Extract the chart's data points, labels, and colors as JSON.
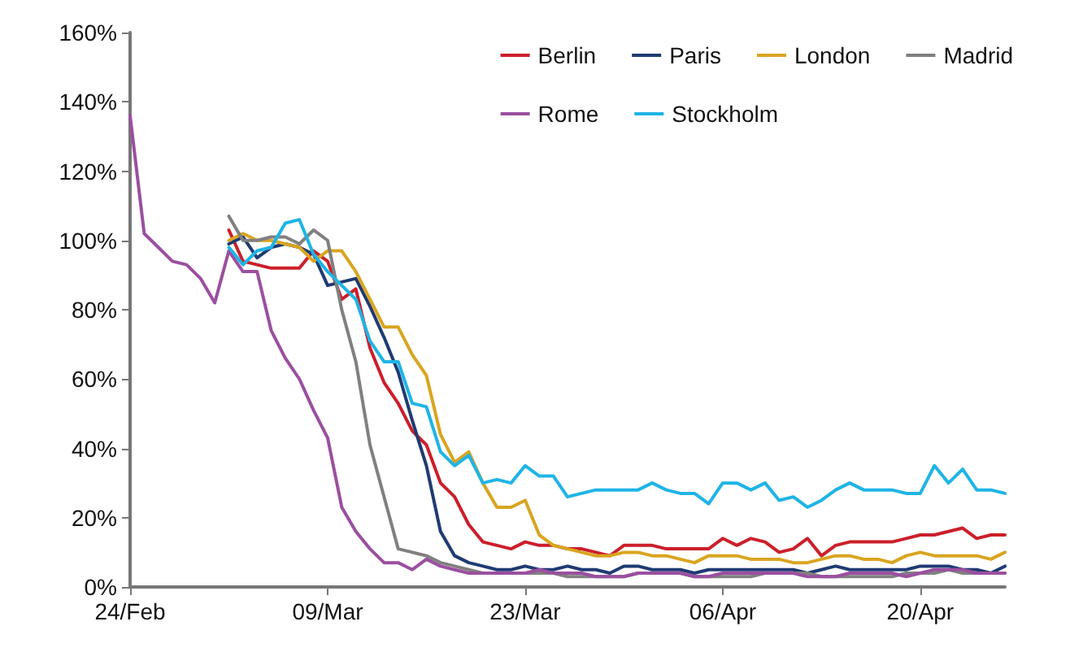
{
  "chart_data": {
    "type": "line",
    "marker": "none",
    "line_style": "solid",
    "grid": false,
    "legend": "top right",
    "x": [
      "--02-24",
      "--02-25",
      "--02-26",
      "--02-27",
      "--02-28",
      "--02-29",
      "--03-01",
      "--03-02",
      "--03-03",
      "--03-04",
      "--03-05",
      "--03-06",
      "--03-07",
      "--03-08",
      "--03-09",
      "--03-10",
      "--03-11",
      "--03-12",
      "--03-13",
      "--03-14",
      "--03-15",
      "--03-16",
      "--03-17",
      "--03-18",
      "--03-19",
      "--03-20",
      "--03-21",
      "--03-22",
      "--03-23",
      "--03-24",
      "--03-25",
      "--03-26",
      "--03-27",
      "--03-28",
      "--03-29",
      "--03-30",
      "--03-31",
      "--04-01",
      "--04-02",
      "--04-03",
      "--04-04",
      "--04-05",
      "--04-06",
      "--04-07",
      "--04-08",
      "--04-09",
      "--04-10",
      "--04-11",
      "--04-12",
      "--04-13",
      "--04-14",
      "--04-15",
      "--04-16",
      "--04-17",
      "--04-18",
      "--04-19",
      "--04-20",
      "--04-21",
      "--04-22",
      "--04-23",
      "--04-24",
      "--04-25",
      "--04-26"
    ],
    "xlim": [
      "--02-24",
      "--04-26"
    ],
    "xticks": [
      {
        "value": "--02-24",
        "label": "24/Feb"
      },
      {
        "value": "--03-09",
        "label": "09/Mar"
      },
      {
        "value": "--03-23",
        "label": "23/Mar"
      },
      {
        "value": "--04-06",
        "label": "06/Apr"
      },
      {
        "value": "--04-20",
        "label": "20/Apr"
      }
    ],
    "ylim": [
      0,
      160
    ],
    "yticks": [
      {
        "value": 0,
        "label": "0%"
      },
      {
        "value": 20,
        "label": "20%"
      },
      {
        "value": 40,
        "label": "40%"
      },
      {
        "value": 60,
        "label": "60%"
      },
      {
        "value": 80,
        "label": "80%"
      },
      {
        "value": 100,
        "label": "100%"
      },
      {
        "value": 120,
        "label": "120%"
      },
      {
        "value": 140,
        "label": "140%"
      },
      {
        "value": 160,
        "label": "160%"
      }
    ],
    "series": [
      {
        "name": "Berlin",
        "color": "#cc1f2b",
        "values": [
          null,
          null,
          null,
          null,
          null,
          null,
          null,
          103,
          94,
          93,
          92,
          92,
          92,
          97,
          94,
          83,
          86,
          69,
          59,
          53,
          45,
          41,
          30,
          26,
          18,
          13,
          12,
          11,
          13,
          12,
          12,
          11,
          11,
          10,
          9,
          12,
          12,
          12,
          11,
          11,
          11,
          11,
          14,
          12,
          14,
          13,
          10,
          11,
          14,
          9,
          12,
          13,
          13,
          13,
          13,
          14,
          15,
          15,
          16,
          17,
          14,
          15,
          15
        ]
      },
      {
        "name": "Paris",
        "color": "#1f3b73",
        "values": [
          null,
          null,
          null,
          null,
          null,
          null,
          null,
          99,
          101,
          95,
          98,
          99,
          98,
          96,
          87,
          88,
          89,
          81,
          72,
          62,
          48,
          35,
          16,
          9,
          7,
          6,
          5,
          5,
          6,
          5,
          5,
          6,
          5,
          5,
          4,
          6,
          6,
          5,
          5,
          5,
          4,
          5,
          5,
          5,
          5,
          5,
          5,
          5,
          4,
          5,
          6,
          5,
          5,
          5,
          5,
          5,
          6,
          6,
          6,
          5,
          5,
          4,
          6
        ]
      },
      {
        "name": "London",
        "color": "#d9a520",
        "values": [
          null,
          null,
          null,
          null,
          null,
          null,
          null,
          100,
          102,
          100,
          100,
          99,
          98,
          94,
          97,
          97,
          91,
          83,
          75,
          75,
          67,
          61,
          44,
          36,
          39,
          30,
          23,
          23,
          25,
          15,
          12,
          11,
          10,
          9,
          9,
          10,
          10,
          9,
          9,
          8,
          7,
          9,
          9,
          9,
          8,
          8,
          8,
          7,
          7,
          8,
          9,
          9,
          8,
          8,
          7,
          9,
          10,
          9,
          9,
          9,
          9,
          8,
          10
        ]
      },
      {
        "name": "Madrid",
        "color": "#808080",
        "values": [
          null,
          null,
          null,
          null,
          null,
          null,
          null,
          107,
          100,
          100,
          101,
          101,
          99,
          103,
          100,
          80,
          65,
          41,
          26,
          11,
          10,
          9,
          7,
          6,
          5,
          4,
          4,
          4,
          4,
          4,
          4,
          3,
          3,
          3,
          3,
          3,
          4,
          4,
          4,
          4,
          3,
          3,
          3,
          3,
          3,
          4,
          4,
          4,
          4,
          3,
          3,
          3,
          3,
          3,
          3,
          4,
          4,
          4,
          5,
          4,
          4,
          4,
          4
        ]
      },
      {
        "name": "Rome",
        "color": "#9b4fa0",
        "values": [
          136,
          102,
          98,
          94,
          93,
          89,
          82,
          97,
          91,
          91,
          74,
          66,
          60,
          51,
          43,
          23,
          16,
          11,
          7,
          7,
          5,
          8,
          6,
          5,
          4,
          4,
          4,
          4,
          4,
          5,
          4,
          4,
          4,
          3,
          3,
          3,
          4,
          4,
          4,
          4,
          3,
          3,
          4,
          4,
          4,
          4,
          4,
          4,
          3,
          3,
          3,
          4,
          4,
          4,
          4,
          3,
          4,
          5,
          5,
          5,
          4,
          4,
          4
        ]
      },
      {
        "name": "Stockholm",
        "color": "#1fb4e6",
        "values": [
          null,
          null,
          null,
          null,
          null,
          null,
          null,
          98,
          93,
          97,
          98,
          105,
          106,
          96,
          91,
          87,
          83,
          71,
          65,
          65,
          53,
          52,
          39,
          35,
          38,
          30,
          31,
          30,
          35,
          32,
          32,
          26,
          27,
          28,
          28,
          28,
          28,
          30,
          28,
          27,
          27,
          24,
          30,
          30,
          28,
          30,
          25,
          26,
          23,
          25,
          28,
          30,
          28,
          28,
          28,
          27,
          27,
          35,
          30,
          34,
          28,
          28,
          27
        ]
      }
    ]
  }
}
